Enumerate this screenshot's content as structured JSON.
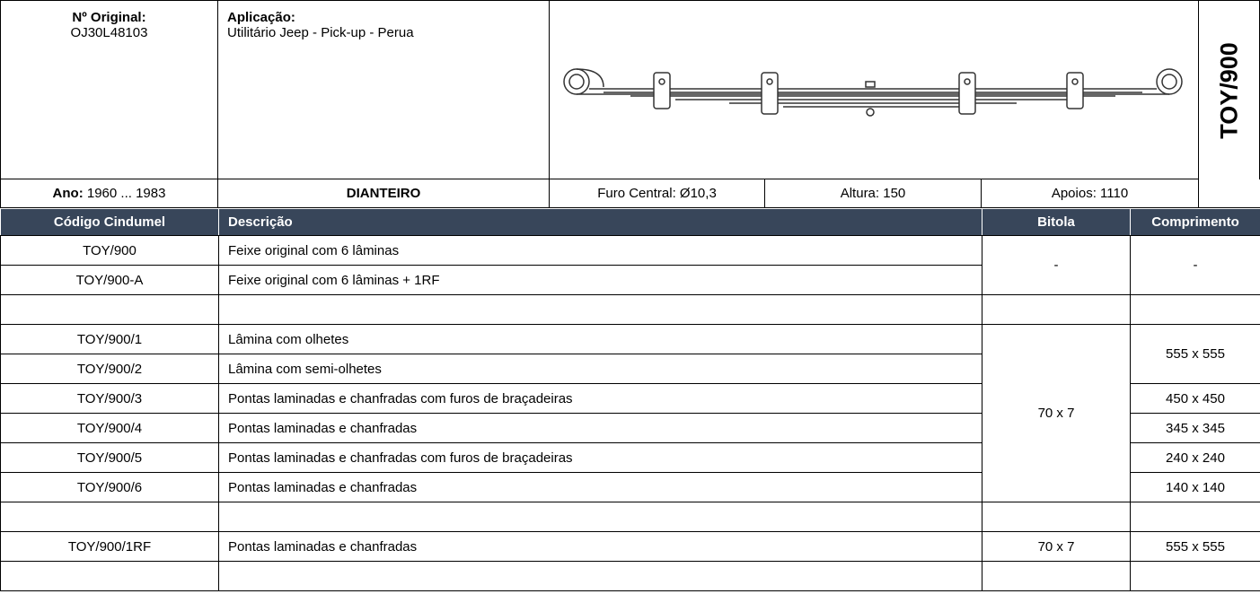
{
  "header": {
    "original_label": "Nº Original:",
    "original_value": "OJ30L48103",
    "application_label": "Aplicação:",
    "application_value": "Utilitário Jeep - Pick-up - Perua",
    "code": "TOY/900",
    "year_label": "Ano:",
    "year_value": "1960 ... 1983",
    "position": "DIANTEIRO",
    "center_hole": "Furo Central: Ø10,3",
    "height": "Altura: 150",
    "supports": "Apoios: 1110"
  },
  "table": {
    "columns": [
      "Código Cindumel",
      "Descrição",
      "Bitola",
      "Comprimento"
    ],
    "rows": [
      {
        "code": "TOY/900",
        "description": "Feixe original com 6 lâminas",
        "gauge": "-",
        "length": "-"
      },
      {
        "code": "TOY/900-A",
        "description": "Feixe original com 6 lâminas + 1RF"
      },
      {
        "code": "TOY/900/1",
        "description": "Lâmina com olhetes",
        "gauge": "70 x 7",
        "length": "555 x 555"
      },
      {
        "code": "TOY/900/2",
        "description": "Lâmina com semi-olhetes"
      },
      {
        "code": "TOY/900/3",
        "description": "Pontas laminadas e chanfradas com furos de braçadeiras",
        "length": "450 x 450"
      },
      {
        "code": "TOY/900/4",
        "description": "Pontas laminadas e chanfradas",
        "length": "345 x 345"
      },
      {
        "code": "TOY/900/5",
        "description": "Pontas laminadas e chanfradas com furos de braçadeiras",
        "length": "240 x 240"
      },
      {
        "code": "TOY/900/6",
        "description": "Pontas laminadas e chanfradas",
        "length": "140 x 140"
      },
      {
        "code": "TOY/900/1RF",
        "description": "Pontas laminadas e chanfradas",
        "gauge": "70 x 7",
        "length": "555 x 555"
      }
    ]
  }
}
